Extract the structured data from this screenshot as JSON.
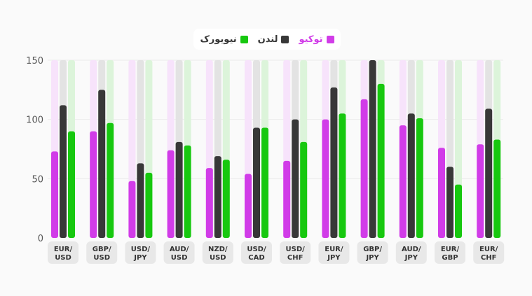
{
  "chart_data": {
    "type": "bar",
    "categories": [
      [
        "EUR/",
        "USD"
      ],
      [
        "GBP/",
        "USD"
      ],
      [
        "USD/",
        "JPY"
      ],
      [
        "AUD/",
        "USD"
      ],
      [
        "NZD/",
        "USD"
      ],
      [
        "USD/",
        "CAD"
      ],
      [
        "USD/",
        "CHF"
      ],
      [
        "EUR/",
        "JPY"
      ],
      [
        "GBP/",
        "JPY"
      ],
      [
        "AUD/",
        "JPY"
      ],
      [
        "EUR/",
        "GBP"
      ],
      [
        "EUR/",
        "CHF"
      ]
    ],
    "series": [
      {
        "name": "توکیو",
        "color": "#d13ce8",
        "track": "#f7e3fb",
        "values": [
          73,
          90,
          48,
          74,
          59,
          54,
          65,
          100,
          117,
          95,
          76,
          79
        ]
      },
      {
        "name": "لندن",
        "color": "#383838",
        "track": "#e3e3e3",
        "values": [
          112,
          125,
          63,
          81,
          69,
          93,
          100,
          127,
          150,
          105,
          60,
          109
        ]
      },
      {
        "name": "نیویورک",
        "color": "#17c80f",
        "track": "#dcf4da",
        "values": [
          90,
          97,
          55,
          78,
          66,
          93,
          81,
          105,
          130,
          101,
          45,
          83
        ]
      }
    ],
    "yticks": [
      0,
      50,
      100,
      150
    ],
    "ylim": [
      0,
      150
    ],
    "grid": true,
    "legend": "top-center"
  }
}
